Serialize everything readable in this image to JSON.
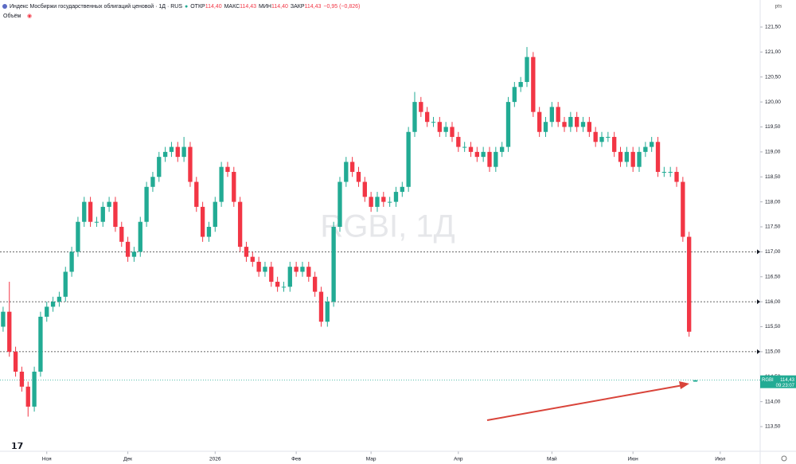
{
  "chart_data": {
    "type": "candlestick",
    "title": "Индекс Мосбиржи государственных облигаций ценовой · 1Д · RUS",
    "legend_ohlc": [
      {
        "label": "ОТКР",
        "value": "114,40"
      },
      {
        "label": "МАКС",
        "value": "114,43"
      },
      {
        "label": "МИН",
        "value": "114,40"
      },
      {
        "label": "ЗАКР",
        "value": "114,43"
      }
    ],
    "change": "−0,95 (−0,826)",
    "volume_label": "Объём",
    "watermark": "RGBI, 1Д",
    "axis_unit": "pts",
    "up_color": "#22ab94",
    "down_color": "#f23645",
    "open": [
      115.5,
      115.8,
      115.0,
      114.6,
      114.3,
      113.9,
      114.6,
      115.7,
      115.9,
      116.0,
      116.1,
      116.6,
      117.0,
      117.6,
      118.0,
      117.6,
      117.6,
      117.9,
      118.0,
      117.5,
      117.2,
      116.9,
      117.0,
      117.6,
      118.3,
      118.5,
      118.9,
      119.0,
      119.1,
      118.9,
      119.1,
      118.4,
      117.9,
      117.3,
      117.5,
      118.0,
      118.7,
      118.6,
      118.0,
      117.1,
      116.9,
      116.8,
      116.6,
      116.7,
      116.4,
      116.3,
      116.3,
      116.7,
      116.6,
      116.7,
      116.5,
      116.2,
      115.6,
      116.0,
      117.5,
      118.4,
      118.8,
      118.6,
      118.4,
      118.1,
      117.9,
      118.1,
      118.0,
      118.0,
      118.2,
      118.3,
      119.4,
      120.0,
      119.8,
      119.6,
      119.6,
      119.4,
      119.5,
      119.3,
      119.1,
      119.1,
      119.0,
      118.9,
      119.0,
      118.7,
      119.0,
      119.1,
      120.0,
      120.3,
      120.4,
      120.9,
      119.8,
      119.4,
      119.6,
      119.9,
      119.6,
      119.5,
      119.7,
      119.5,
      119.6,
      119.4,
      119.2,
      119.3,
      119.3,
      119.0,
      118.8,
      119.0,
      118.7,
      119.0,
      119.1,
      119.2,
      118.6,
      118.6,
      118.6,
      118.4,
      117.3,
      114.4
    ],
    "high": [
      115.9,
      116.4,
      115.1,
      114.7,
      114.4,
      114.7,
      115.8,
      116.0,
      116.1,
      116.2,
      116.7,
      117.1,
      117.7,
      118.1,
      118.1,
      117.7,
      118.0,
      118.1,
      118.1,
      117.6,
      117.3,
      117.1,
      117.7,
      118.4,
      118.6,
      119.0,
      119.1,
      119.2,
      119.2,
      119.3,
      119.2,
      118.5,
      118.0,
      117.6,
      118.1,
      118.8,
      118.8,
      118.7,
      118.1,
      117.2,
      117.0,
      116.9,
      116.8,
      116.8,
      116.5,
      116.4,
      116.8,
      116.8,
      116.8,
      116.8,
      116.6,
      116.3,
      116.1,
      117.6,
      118.5,
      118.9,
      118.9,
      118.7,
      118.5,
      118.2,
      118.2,
      118.2,
      118.1,
      118.3,
      118.4,
      119.5,
      120.2,
      120.1,
      119.9,
      119.7,
      119.7,
      119.6,
      119.6,
      119.4,
      119.2,
      119.2,
      119.1,
      119.1,
      119.1,
      119.1,
      119.2,
      120.1,
      120.4,
      120.5,
      121.1,
      121.0,
      119.9,
      119.7,
      120.0,
      120.0,
      119.7,
      119.8,
      119.8,
      119.7,
      119.7,
      119.5,
      119.4,
      119.4,
      119.4,
      119.1,
      119.1,
      119.1,
      119.1,
      119.2,
      119.3,
      119.3,
      118.7,
      118.7,
      118.7,
      118.5,
      117.4,
      114.43
    ],
    "low": [
      115.4,
      114.9,
      114.5,
      114.2,
      113.7,
      113.8,
      114.5,
      115.6,
      115.8,
      115.9,
      116.0,
      116.5,
      116.9,
      117.5,
      117.5,
      117.5,
      117.5,
      117.8,
      117.4,
      117.1,
      116.8,
      116.8,
      116.9,
      117.5,
      118.2,
      118.4,
      118.8,
      118.9,
      118.8,
      118.8,
      118.3,
      117.8,
      117.2,
      117.2,
      117.4,
      117.9,
      118.5,
      117.9,
      117.0,
      116.8,
      116.7,
      116.5,
      116.5,
      116.3,
      116.2,
      116.2,
      116.2,
      116.5,
      116.5,
      116.4,
      116.1,
      115.5,
      115.5,
      115.9,
      117.4,
      118.3,
      118.5,
      118.3,
      118.0,
      117.8,
      117.8,
      117.9,
      117.9,
      117.9,
      118.1,
      118.2,
      119.3,
      119.7,
      119.5,
      119.5,
      119.3,
      119.3,
      119.2,
      119.0,
      119.0,
      118.9,
      118.8,
      118.8,
      118.6,
      118.6,
      118.9,
      119.0,
      119.9,
      120.2,
      120.3,
      119.7,
      119.3,
      119.3,
      119.5,
      119.5,
      119.4,
      119.4,
      119.4,
      119.4,
      119.3,
      119.1,
      119.1,
      119.2,
      118.9,
      118.7,
      118.7,
      118.6,
      118.6,
      118.9,
      119.0,
      118.5,
      118.5,
      118.5,
      118.3,
      117.2,
      115.3,
      114.4
    ],
    "close": [
      115.8,
      115.0,
      114.6,
      114.3,
      113.9,
      114.6,
      115.7,
      115.9,
      116.0,
      116.1,
      116.6,
      117.0,
      117.6,
      118.0,
      117.6,
      117.6,
      117.9,
      118.0,
      117.5,
      117.2,
      116.9,
      117.0,
      117.6,
      118.3,
      118.5,
      118.9,
      119.0,
      119.1,
      118.9,
      119.1,
      118.4,
      117.9,
      117.3,
      117.5,
      118.0,
      118.7,
      118.6,
      118.0,
      117.1,
      116.9,
      116.8,
      116.6,
      116.7,
      116.4,
      116.3,
      116.3,
      116.7,
      116.6,
      116.7,
      116.5,
      116.2,
      115.6,
      116.0,
      117.5,
      118.4,
      118.8,
      118.6,
      118.4,
      118.1,
      117.9,
      118.1,
      118.0,
      118.0,
      118.2,
      118.3,
      119.4,
      120.0,
      119.8,
      119.6,
      119.6,
      119.4,
      119.5,
      119.3,
      119.1,
      119.1,
      119.0,
      118.9,
      119.0,
      118.7,
      119.0,
      119.1,
      120.0,
      120.3,
      120.4,
      120.9,
      119.8,
      119.4,
      119.6,
      119.9,
      119.6,
      119.5,
      119.7,
      119.5,
      119.6,
      119.4,
      119.2,
      119.3,
      119.3,
      119.0,
      118.8,
      119.0,
      118.7,
      119.0,
      119.1,
      119.2,
      118.6,
      118.6,
      118.6,
      118.4,
      117.3,
      115.4,
      114.43
    ],
    "xlim": [
      -0.5,
      121.4
    ],
    "xticks": [
      {
        "value": 7,
        "label": "Ноя"
      },
      {
        "value": 20,
        "label": "Дек"
      },
      {
        "value": 34,
        "label": "2026"
      },
      {
        "value": 47,
        "label": "Фев"
      },
      {
        "value": 59,
        "label": "Мар"
      },
      {
        "value": 73,
        "label": "Апр"
      },
      {
        "value": 88,
        "label": "Май"
      },
      {
        "value": 101,
        "label": "Июн"
      },
      {
        "value": 115,
        "label": "Июл"
      }
    ],
    "ylim": [
      113.0,
      122.0
    ],
    "yticks": [
      {
        "value": 113.5,
        "label": "113,50"
      },
      {
        "value": 114.0,
        "label": "114,00"
      },
      {
        "value": 114.5,
        "label": "114,50"
      },
      {
        "value": 115.0,
        "label": "115,00"
      },
      {
        "value": 115.5,
        "label": "115,50"
      },
      {
        "value": 116.0,
        "label": "116,00"
      },
      {
        "value": 116.5,
        "label": "116,50"
      },
      {
        "value": 117.0,
        "label": "117,00"
      },
      {
        "value": 117.5,
        "label": "117,50"
      },
      {
        "value": 118.0,
        "label": "118,00"
      },
      {
        "value": 118.5,
        "label": "118,50"
      },
      {
        "value": 119.0,
        "label": "119,00"
      },
      {
        "value": 119.5,
        "label": "119,50"
      },
      {
        "value": 120.0,
        "label": "120,00"
      },
      {
        "value": 120.5,
        "label": "120,50"
      },
      {
        "value": 121.0,
        "label": "121,00"
      },
      {
        "value": 121.5,
        "label": "121,50"
      }
    ],
    "horizontal_lines": [
      117.0,
      116.0,
      115.0
    ],
    "last_price": {
      "symbol": "RGBI",
      "value": 114.43,
      "label": "114,43",
      "time": "09:23:07",
      "color": "#22ab94"
    }
  }
}
